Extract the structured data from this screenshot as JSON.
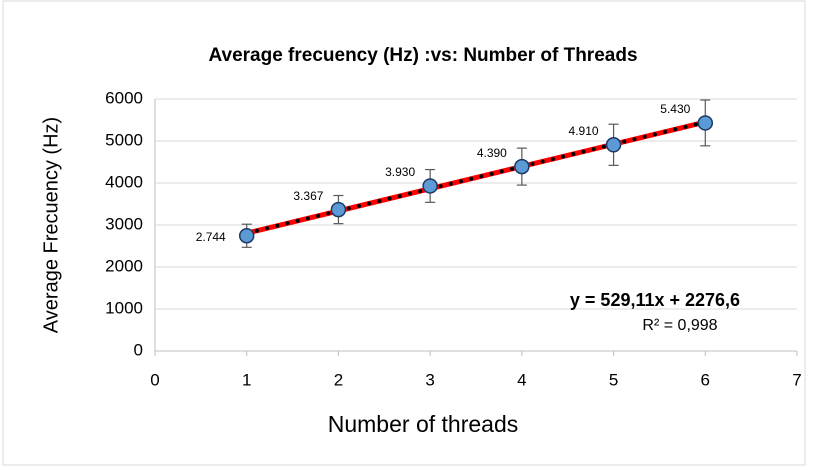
{
  "chart_data": {
    "type": "scatter",
    "title": "Average frecuency (Hz) :vs: Number of Threads",
    "x_label": "Number of threads",
    "y_label": "Average Frecuency (Hz)",
    "x": [
      1,
      2,
      3,
      4,
      5,
      6
    ],
    "values": [
      2744,
      3367,
      3930,
      4390,
      4910,
      5430
    ],
    "value_labels": [
      "2.744",
      "3.367",
      "3.930",
      "4.390",
      "4.910",
      "5.430"
    ],
    "errors": [
      275,
      335,
      390,
      440,
      490,
      545
    ],
    "color": "#5b9bd5",
    "xlim": [
      0,
      7
    ],
    "xticks": [
      0,
      1,
      2,
      3,
      4,
      5,
      6,
      7
    ],
    "ylim": [
      0,
      6000
    ],
    "yticks": [
      0,
      1000,
      2000,
      3000,
      4000,
      5000,
      6000
    ],
    "grid": true,
    "trendline": {
      "slope": 529.11,
      "intercept": 2276.6,
      "color": "#ff0000",
      "equation": "y = 529,11x + 2276,6",
      "r2": "R² = 0,998"
    }
  }
}
